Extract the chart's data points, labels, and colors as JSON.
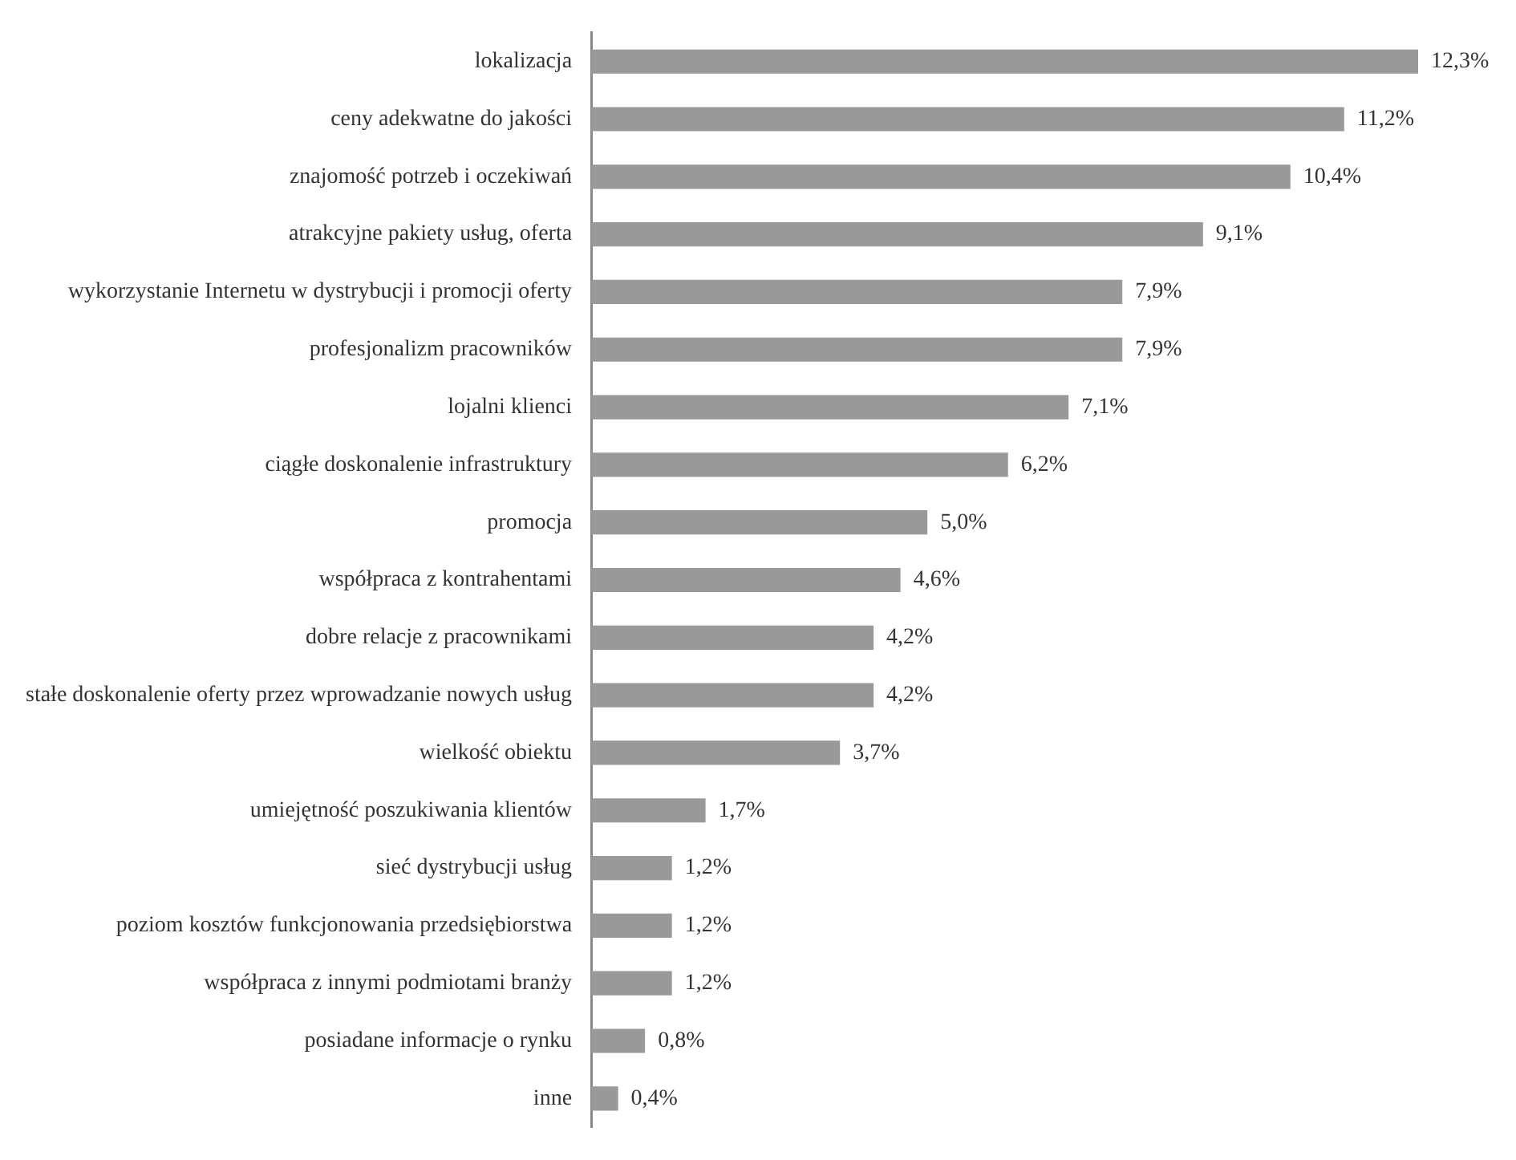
{
  "chart_data": {
    "type": "bar",
    "orientation": "horizontal",
    "categories": [
      "lokalizacja",
      "ceny adekwatne do jakości",
      "znajomość potrzeb i oczekiwań",
      "atrakcyjne pakiety usług, oferta",
      "wykorzystanie Internetu w dystrybucji i promocji oferty",
      "profesjonalizm pracowników",
      "lojalni klienci",
      "ciągłe doskonalenie infrastruktury",
      "promocja",
      "współpraca z kontrahentami",
      "dobre relacje z pracownikami",
      "stałe doskonalenie oferty przez wprowadzanie nowych usług",
      "wielkość obiektu",
      "umiejętność poszukiwania klientów",
      "sieć dystrybucji usług",
      "poziom kosztów funkcjonowania przedsiębiorstwa",
      "współpraca z innymi podmiotami branży",
      "posiadane informacje o rynku",
      "inne"
    ],
    "values": [
      12.3,
      11.2,
      10.4,
      9.1,
      7.9,
      7.9,
      7.1,
      6.2,
      5.0,
      4.6,
      4.2,
      4.2,
      3.7,
      1.7,
      1.2,
      1.2,
      1.2,
      0.8,
      0.4
    ],
    "value_labels": [
      "12,3%",
      "11,2%",
      "10,4%",
      "9,1%",
      "7,9%",
      "7,9%",
      "7,1%",
      "6,2%",
      "5,0%",
      "4,6%",
      "4,2%",
      "4,2%",
      "3,7%",
      "1,7%",
      "1,2%",
      "1,2%",
      "1,2%",
      "0,8%",
      "0,4%"
    ],
    "color": "#999999",
    "grid": false,
    "legend": false,
    "tick_labels": "y"
  }
}
